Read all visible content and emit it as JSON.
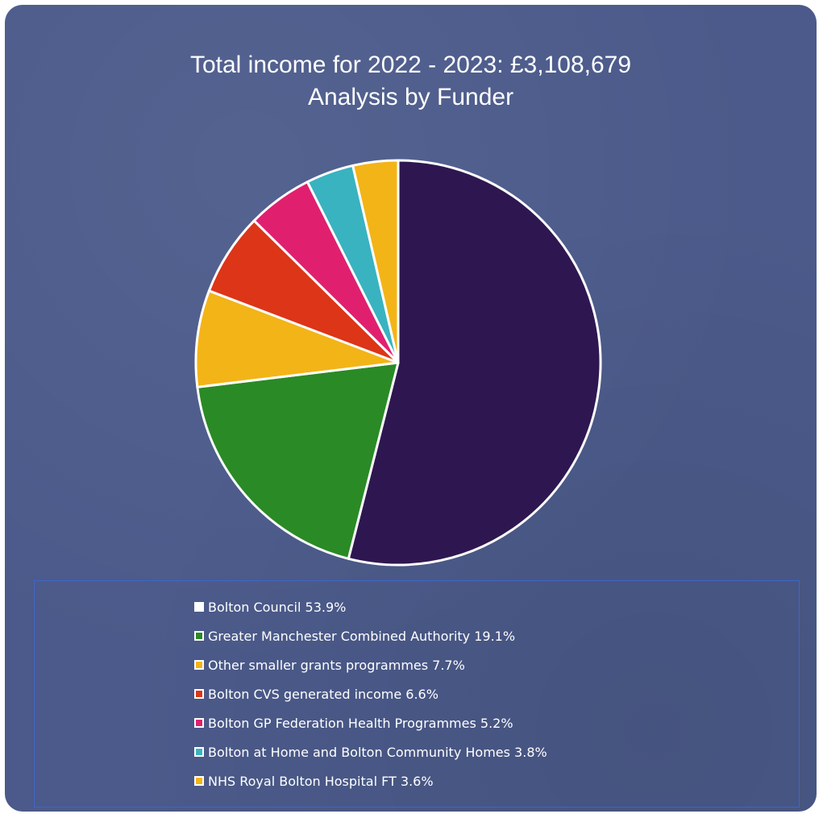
{
  "chart_data": {
    "type": "pie",
    "title": "Total income for 2022 - 2023: £3,108,679",
    "subtitle": "Analysis by Funder",
    "legend_position": "bottom",
    "slices": [
      {
        "label": "Bolton Council 53.9%",
        "value": 53.9,
        "color": "#2e1750",
        "legend_swatch": "#ffffff"
      },
      {
        "label": "Greater Manchester Combined Authority 19.1%",
        "value": 19.1,
        "color": "#2a8a25"
      },
      {
        "label": "Other smaller grants programmes 7.7%",
        "value": 7.7,
        "color": "#f3b417"
      },
      {
        "label": "Bolton CVS generated income 6.6%",
        "value": 6.6,
        "color": "#dc3517"
      },
      {
        "label": "Bolton GP Federation Health Programmes 5.2%",
        "value": 5.2,
        "color": "#e0206f"
      },
      {
        "label": "Bolton at Home and Bolton Community Homes 3.8%",
        "value": 3.8,
        "color": "#39b3c0"
      },
      {
        "label": "NHS Royal Bolton Hospital FT 3.6%",
        "value": 3.6,
        "color": "#f3b417"
      }
    ]
  }
}
